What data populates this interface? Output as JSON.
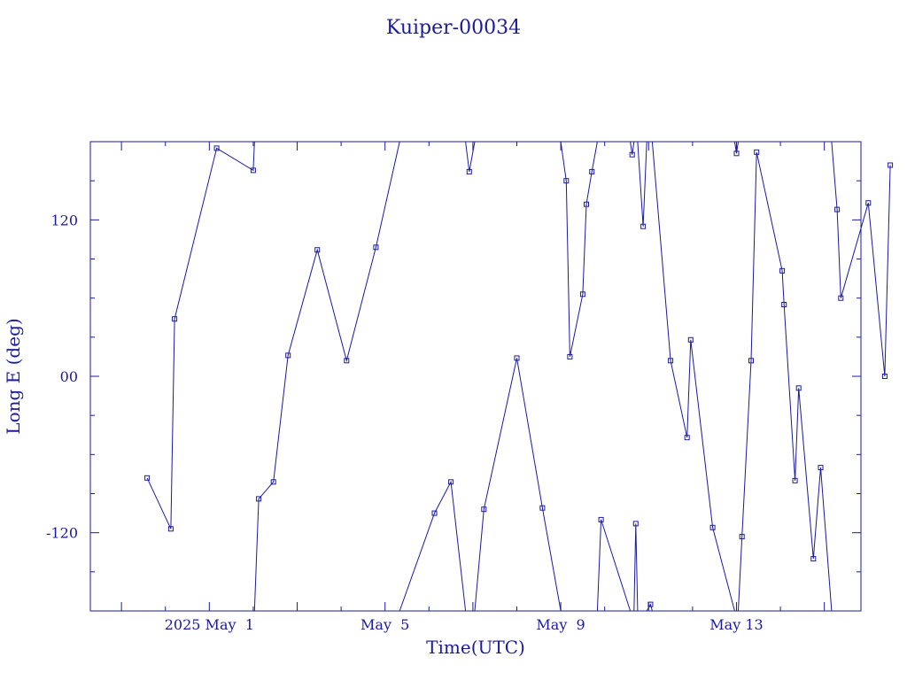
{
  "chart_data": {
    "type": "line",
    "title": "Kuiper-00034",
    "xlabel": "Time(UTC)",
    "ylabel": "Long E (deg)",
    "x_unit": "days (May 2025)",
    "xlim": [
      28.3,
      14.85
    ],
    "xlim_note": "",
    "x_range": {
      "start": "2025-04-28T07:00",
      "end": "2025-05-15T20:00"
    },
    "ylim": [
      -180,
      180
    ],
    "x_tick_labels": [
      {
        "date": "2025-05-01",
        "label": "2025 May  1"
      },
      {
        "date": "2025-05-05",
        "label": "May  5"
      },
      {
        "date": "2025-05-09",
        "label": "May  9"
      },
      {
        "date": "2025-05-13",
        "label": "May 13"
      }
    ],
    "y_ticks": [
      -120,
      0,
      120
    ],
    "y_tick_labels": [
      "-120",
      "00",
      "120"
    ],
    "color": "#1a1a9e",
    "grid": false,
    "series": [
      {
        "points": [
          {
            "t": "2025-04-29T14:00",
            "y": -78
          },
          {
            "t": "2025-04-30T03:00",
            "y": -117
          },
          {
            "t": "2025-04-30T05:00",
            "y": 44
          },
          {
            "t": "2025-05-01T04:00",
            "y": 175
          },
          {
            "t": "2025-05-02T00:00",
            "y": 158
          },
          {
            "t": "2025-05-02T00:40",
            "y": 180
          }
        ]
      },
      {
        "points": [
          {
            "t": "2025-05-02T00:40",
            "y": -180
          },
          {
            "t": "2025-05-02T03:00",
            "y": -94
          },
          {
            "t": "2025-05-02T11:00",
            "y": -81
          },
          {
            "t": "2025-05-02T19:00",
            "y": 16
          },
          {
            "t": "2025-05-03T11:00",
            "y": 97
          },
          {
            "t": "2025-05-04T03:00",
            "y": 12
          },
          {
            "t": "2025-05-04T19:00",
            "y": 99
          },
          {
            "t": "2025-05-05T08:00",
            "y": 180
          }
        ]
      },
      {
        "points": [
          {
            "t": "2025-05-05T08:00",
            "y": -180
          },
          {
            "t": "2025-05-06T03:00",
            "y": -105
          },
          {
            "t": "2025-05-06T12:00",
            "y": -81
          },
          {
            "t": "2025-05-06T20:00",
            "y": -180
          }
        ]
      },
      {
        "points": [
          {
            "t": "2025-05-06T20:00",
            "y": 180
          },
          {
            "t": "2025-05-06T22:00",
            "y": 157
          },
          {
            "t": "2025-05-07T01:00",
            "y": 180
          }
        ]
      },
      {
        "points": [
          {
            "t": "2025-05-07T01:00",
            "y": -180
          },
          {
            "t": "2025-05-07T06:00",
            "y": -102
          },
          {
            "t": "2025-05-08T00:00",
            "y": 14
          },
          {
            "t": "2025-05-08T14:00",
            "y": -101
          },
          {
            "t": "2025-05-09T00:00",
            "y": -180
          }
        ]
      },
      {
        "points": [
          {
            "t": "2025-05-09T00:00",
            "y": 180
          },
          {
            "t": "2025-05-09T03:00",
            "y": 150
          },
          {
            "t": "2025-05-09T05:00",
            "y": 15
          },
          {
            "t": "2025-05-09T12:00",
            "y": 63
          },
          {
            "t": "2025-05-09T14:00",
            "y": 132
          },
          {
            "t": "2025-05-09T17:00",
            "y": 157
          },
          {
            "t": "2025-05-09T20:00",
            "y": 180
          }
        ]
      },
      {
        "points": [
          {
            "t": "2025-05-09T20:00",
            "y": -180
          },
          {
            "t": "2025-05-09T22:00",
            "y": -110
          },
          {
            "t": "2025-05-10T14:00",
            "y": -180
          }
        ]
      },
      {
        "points": [
          {
            "t": "2025-05-10T14:00",
            "y": 180
          },
          {
            "t": "2025-05-10T15:00",
            "y": 170
          },
          {
            "t": "2025-05-10T16:00",
            "y": 180
          }
        ]
      },
      {
        "points": [
          {
            "t": "2025-05-10T16:00",
            "y": -180
          },
          {
            "t": "2025-05-10T17:00",
            "y": -113
          },
          {
            "t": "2025-05-10T18:00",
            "y": -180
          }
        ]
      },
      {
        "points": [
          {
            "t": "2025-05-10T18:00",
            "y": 180
          },
          {
            "t": "2025-05-10T21:00",
            "y": 115
          },
          {
            "t": "2025-05-10T23:00",
            "y": 180
          }
        ]
      },
      {
        "points": [
          {
            "t": "2025-05-10T23:00",
            "y": -180
          },
          {
            "t": "2025-05-11T01:00",
            "y": -175
          },
          {
            "t": "2025-05-11T02:00",
            "y": -180
          }
        ]
      },
      {
        "points": [
          {
            "t": "2025-05-11T02:00",
            "y": 180
          },
          {
            "t": "2025-05-11T12:00",
            "y": 12
          },
          {
            "t": "2025-05-11T21:00",
            "y": -47
          },
          {
            "t": "2025-05-11T23:00",
            "y": 28
          },
          {
            "t": "2025-05-12T11:00",
            "y": -116
          },
          {
            "t": "2025-05-12T23:00",
            "y": -180
          }
        ]
      },
      {
        "points": [
          {
            "t": "2025-05-12T23:00",
            "y": 180
          },
          {
            "t": "2025-05-13T00:00",
            "y": 171
          },
          {
            "t": "2025-05-13T01:00",
            "y": 180
          }
        ]
      },
      {
        "points": [
          {
            "t": "2025-05-13T01:00",
            "y": -180
          },
          {
            "t": "2025-05-13T03:00",
            "y": -123
          },
          {
            "t": "2025-05-13T08:00",
            "y": 12
          },
          {
            "t": "2025-05-13T11:00",
            "y": 172
          },
          {
            "t": "2025-05-14T01:00",
            "y": 81
          },
          {
            "t": "2025-05-14T02:00",
            "y": 55
          },
          {
            "t": "2025-05-14T08:00",
            "y": -80
          },
          {
            "t": "2025-05-14T10:00",
            "y": -9
          },
          {
            "t": "2025-05-14T18:00",
            "y": -140
          },
          {
            "t": "2025-05-14T22:00",
            "y": -70
          },
          {
            "t": "2025-05-15T04:00",
            "y": -180
          }
        ]
      },
      {
        "points": [
          {
            "t": "2025-05-15T04:00",
            "y": 180
          },
          {
            "t": "2025-05-15T07:00",
            "y": 128
          },
          {
            "t": "2025-05-15T09:00",
            "y": 60
          },
          {
            "t": "2025-05-16T00:00",
            "y": 133
          },
          {
            "t": "2025-05-16T09:00",
            "y": 0
          },
          {
            "t": "2025-05-16T12:00",
            "y": 162
          }
        ]
      }
    ]
  }
}
